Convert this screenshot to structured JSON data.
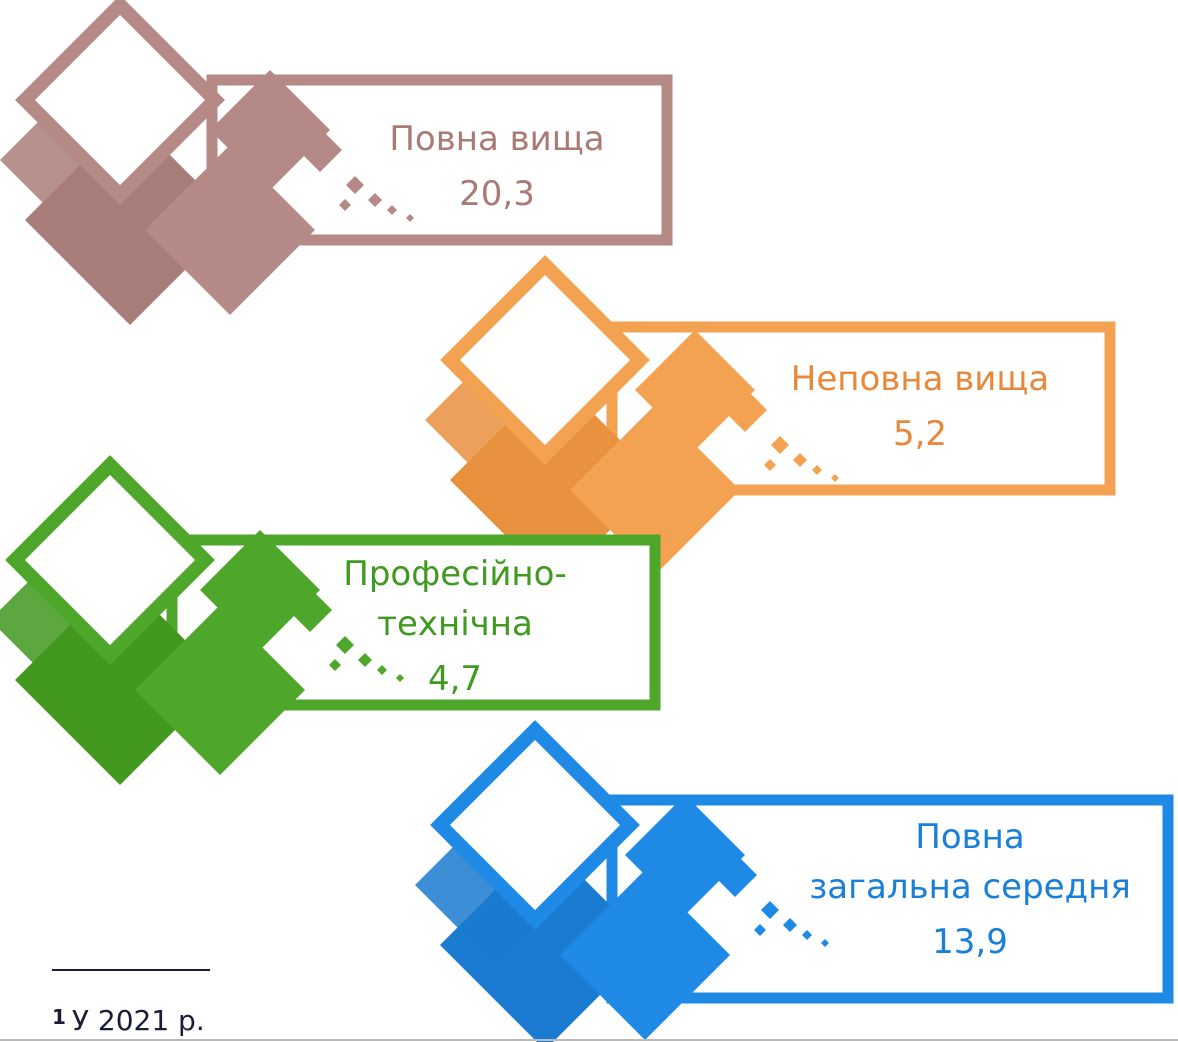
{
  "items": [
    {
      "label_lines": [
        "Повна вища"
      ],
      "value": "20,3"
    },
    {
      "label_lines": [
        "Неповна вища"
      ],
      "value": "5,2"
    },
    {
      "label_lines": [
        "Професійно-",
        "технічна"
      ],
      "value": "4,7"
    },
    {
      "label_lines": [
        "Повна",
        "загальна середня"
      ],
      "value": "13,9"
    }
  ],
  "footnote": {
    "marker": "1",
    "text": "У 2021 р."
  }
}
